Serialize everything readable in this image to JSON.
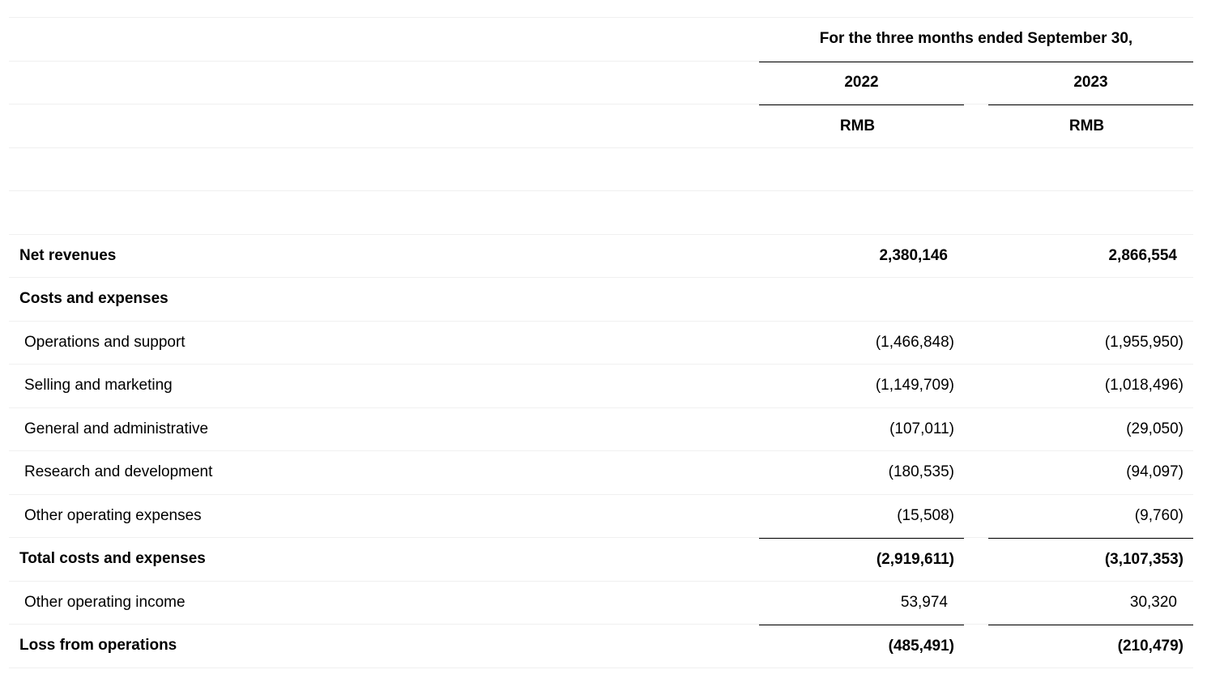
{
  "header": {
    "period": "For the three months ended September 30,",
    "years": [
      "2022",
      "2023"
    ],
    "currency": [
      "RMB",
      "RMB"
    ]
  },
  "rows": [
    {
      "label": "Net revenues",
      "v2022": "2,380,146",
      "v2023": "2,866,554",
      "bold": true
    },
    {
      "label": "Costs and expenses",
      "v2022": "",
      "v2023": "",
      "bold": true
    },
    {
      "label": "Operations and support",
      "v2022": "(1,466,848)",
      "v2023": "(1,955,950)"
    },
    {
      "label": "Selling and marketing",
      "v2022": "(1,149,709)",
      "v2023": "(1,018,496)"
    },
    {
      "label": "General and administrative",
      "v2022": "(107,011)",
      "v2023": "(29,050)"
    },
    {
      "label": "Research and development",
      "v2022": "(180,535)",
      "v2023": "(94,097)"
    },
    {
      "label": "Other operating expenses",
      "v2022": "(15,508)",
      "v2023": "(9,760)"
    },
    {
      "label": "Total costs and expenses",
      "v2022": "(2,919,611)",
      "v2023": "(3,107,353)",
      "bold": true
    },
    {
      "label": "Other operating income",
      "v2022": "53,974",
      "v2023": "30,320"
    },
    {
      "label": "Loss from operations",
      "v2022": "(485,491)",
      "v2023": "(210,479)",
      "bold": true
    }
  ]
}
